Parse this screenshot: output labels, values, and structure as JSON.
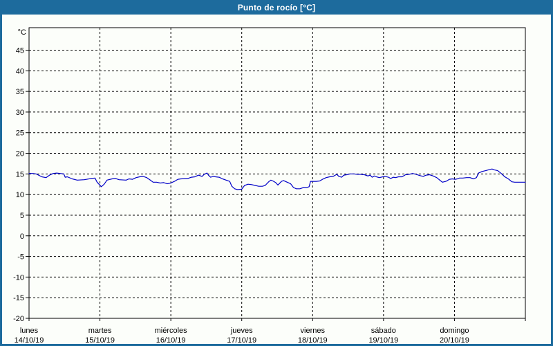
{
  "window": {
    "title": "Punto de rocío [°C]"
  },
  "colors": {
    "frame": "#1D6B9D",
    "title_text": "#FFFFFF",
    "plot_bg": "#FCFEFA",
    "axis": "#000000",
    "grid": "#000000",
    "label": "#000000",
    "line": "#0000C8"
  },
  "chart_data": {
    "type": "line",
    "title": "Punto de rocío [°C]",
    "ylabel": "°C",
    "xlabel": "",
    "ylim": [
      -20,
      50.45
    ],
    "xlim_days": [
      0,
      7
    ],
    "grid": "dashed",
    "legend_position": "none",
    "y_ticks": [
      45,
      40,
      35,
      30,
      25,
      20,
      15,
      10,
      5,
      0,
      -5,
      -10,
      -15,
      -20
    ],
    "x_labels": [
      {
        "weekday": "lunes",
        "date": "14/10/19"
      },
      {
        "weekday": "martes",
        "date": "15/10/19"
      },
      {
        "weekday": "miércoles",
        "date": "16/10/19"
      },
      {
        "weekday": "jueves",
        "date": "17/10/19"
      },
      {
        "weekday": "viernes",
        "date": "18/10/19"
      },
      {
        "weekday": "sábado",
        "date": "19/10/19"
      },
      {
        "weekday": "domingo",
        "date": "20/10/19"
      }
    ],
    "series": [
      {
        "name": "Punto de rocío",
        "color": "#0000C8",
        "points": [
          [
            0.0,
            15.1
          ],
          [
            0.05,
            15.1
          ],
          [
            0.1,
            15.0
          ],
          [
            0.18,
            14.3
          ],
          [
            0.24,
            14.1
          ],
          [
            0.29,
            14.7
          ],
          [
            0.34,
            15.1
          ],
          [
            0.39,
            15.2
          ],
          [
            0.44,
            15.1
          ],
          [
            0.49,
            15.0
          ],
          [
            0.51,
            14.2
          ],
          [
            0.54,
            14.3
          ],
          [
            0.61,
            13.8
          ],
          [
            0.68,
            13.5
          ],
          [
            0.78,
            13.6
          ],
          [
            0.88,
            13.9
          ],
          [
            0.93,
            14.0
          ],
          [
            0.96,
            13.0
          ],
          [
            1.02,
            11.9
          ],
          [
            1.06,
            12.5
          ],
          [
            1.1,
            13.5
          ],
          [
            1.17,
            13.8
          ],
          [
            1.22,
            13.9
          ],
          [
            1.27,
            13.6
          ],
          [
            1.37,
            13.5
          ],
          [
            1.41,
            13.8
          ],
          [
            1.46,
            13.7
          ],
          [
            1.51,
            14.1
          ],
          [
            1.56,
            14.3
          ],
          [
            1.61,
            14.4
          ],
          [
            1.66,
            14.1
          ],
          [
            1.71,
            13.5
          ],
          [
            1.75,
            13.0
          ],
          [
            1.8,
            13.0
          ],
          [
            1.85,
            12.8
          ],
          [
            1.9,
            12.9
          ],
          [
            1.95,
            12.6
          ],
          [
            2.0,
            12.8
          ],
          [
            2.05,
            13.2
          ],
          [
            2.1,
            13.7
          ],
          [
            2.14,
            13.8
          ],
          [
            2.24,
            13.9
          ],
          [
            2.29,
            14.2
          ],
          [
            2.34,
            14.3
          ],
          [
            2.39,
            14.7
          ],
          [
            2.44,
            14.4
          ],
          [
            2.47,
            14.9
          ],
          [
            2.51,
            15.2
          ],
          [
            2.53,
            14.7
          ],
          [
            2.56,
            14.2
          ],
          [
            2.6,
            14.4
          ],
          [
            2.63,
            14.3
          ],
          [
            2.68,
            14.2
          ],
          [
            2.73,
            13.8
          ],
          [
            2.78,
            13.5
          ],
          [
            2.83,
            13.2
          ],
          [
            2.86,
            12.0
          ],
          [
            2.9,
            11.4
          ],
          [
            2.94,
            11.2
          ],
          [
            3.0,
            11.3
          ],
          [
            3.04,
            12.2
          ],
          [
            3.09,
            12.5
          ],
          [
            3.14,
            12.4
          ],
          [
            3.19,
            12.2
          ],
          [
            3.24,
            12.0
          ],
          [
            3.29,
            12.0
          ],
          [
            3.33,
            12.2
          ],
          [
            3.38,
            13.1
          ],
          [
            3.41,
            13.5
          ],
          [
            3.44,
            13.3
          ],
          [
            3.48,
            12.9
          ],
          [
            3.51,
            12.3
          ],
          [
            3.56,
            13.2
          ],
          [
            3.59,
            13.4
          ],
          [
            3.64,
            13.0
          ],
          [
            3.69,
            12.6
          ],
          [
            3.73,
            11.7
          ],
          [
            3.77,
            11.4
          ],
          [
            3.82,
            11.4
          ],
          [
            3.87,
            11.7
          ],
          [
            3.92,
            11.7
          ],
          [
            3.95,
            11.9
          ],
          [
            3.97,
            13.2
          ],
          [
            4.05,
            13.2
          ],
          [
            4.1,
            13.3
          ],
          [
            4.14,
            13.7
          ],
          [
            4.19,
            14.1
          ],
          [
            4.24,
            14.3
          ],
          [
            4.29,
            14.4
          ],
          [
            4.34,
            14.9
          ],
          [
            4.37,
            14.4
          ],
          [
            4.41,
            14.2
          ],
          [
            4.44,
            14.7
          ],
          [
            4.48,
            14.8
          ],
          [
            4.53,
            15.0
          ],
          [
            4.58,
            15.0
          ],
          [
            4.63,
            14.9
          ],
          [
            4.68,
            14.9
          ],
          [
            4.73,
            14.8
          ],
          [
            4.78,
            14.5
          ],
          [
            4.81,
            14.7
          ],
          [
            4.84,
            14.2
          ],
          [
            4.87,
            14.5
          ],
          [
            4.9,
            14.3
          ],
          [
            4.94,
            14.1
          ],
          [
            4.99,
            14.3
          ],
          [
            5.02,
            14.4
          ],
          [
            5.07,
            14.2
          ],
          [
            5.1,
            13.9
          ],
          [
            5.14,
            14.2
          ],
          [
            5.17,
            14.1
          ],
          [
            5.21,
            14.3
          ],
          [
            5.26,
            14.3
          ],
          [
            5.31,
            14.8
          ],
          [
            5.36,
            14.9
          ],
          [
            5.41,
            15.1
          ],
          [
            5.46,
            14.9
          ],
          [
            5.51,
            14.6
          ],
          [
            5.56,
            14.4
          ],
          [
            5.6,
            14.7
          ],
          [
            5.65,
            14.8
          ],
          [
            5.7,
            14.5
          ],
          [
            5.75,
            14.1
          ],
          [
            5.8,
            13.4
          ],
          [
            5.83,
            13.0
          ],
          [
            5.88,
            13.2
          ],
          [
            5.93,
            13.7
          ],
          [
            5.97,
            13.8
          ],
          [
            6.01,
            13.7
          ],
          [
            6.04,
            13.8
          ],
          [
            6.07,
            14.0
          ],
          [
            6.12,
            14.0
          ],
          [
            6.17,
            14.1
          ],
          [
            6.22,
            14.1
          ],
          [
            6.27,
            13.8
          ],
          [
            6.31,
            14.1
          ],
          [
            6.34,
            15.2
          ],
          [
            6.39,
            15.6
          ],
          [
            6.44,
            15.8
          ],
          [
            6.48,
            16.0
          ],
          [
            6.53,
            16.2
          ],
          [
            6.56,
            16.0
          ],
          [
            6.61,
            15.8
          ],
          [
            6.66,
            15.1
          ],
          [
            6.71,
            14.3
          ],
          [
            6.76,
            13.8
          ],
          [
            6.81,
            13.1
          ],
          [
            6.85,
            13.0
          ],
          [
            6.9,
            13.0
          ],
          [
            6.95,
            13.0
          ],
          [
            7.0,
            13.0
          ]
        ]
      }
    ]
  }
}
